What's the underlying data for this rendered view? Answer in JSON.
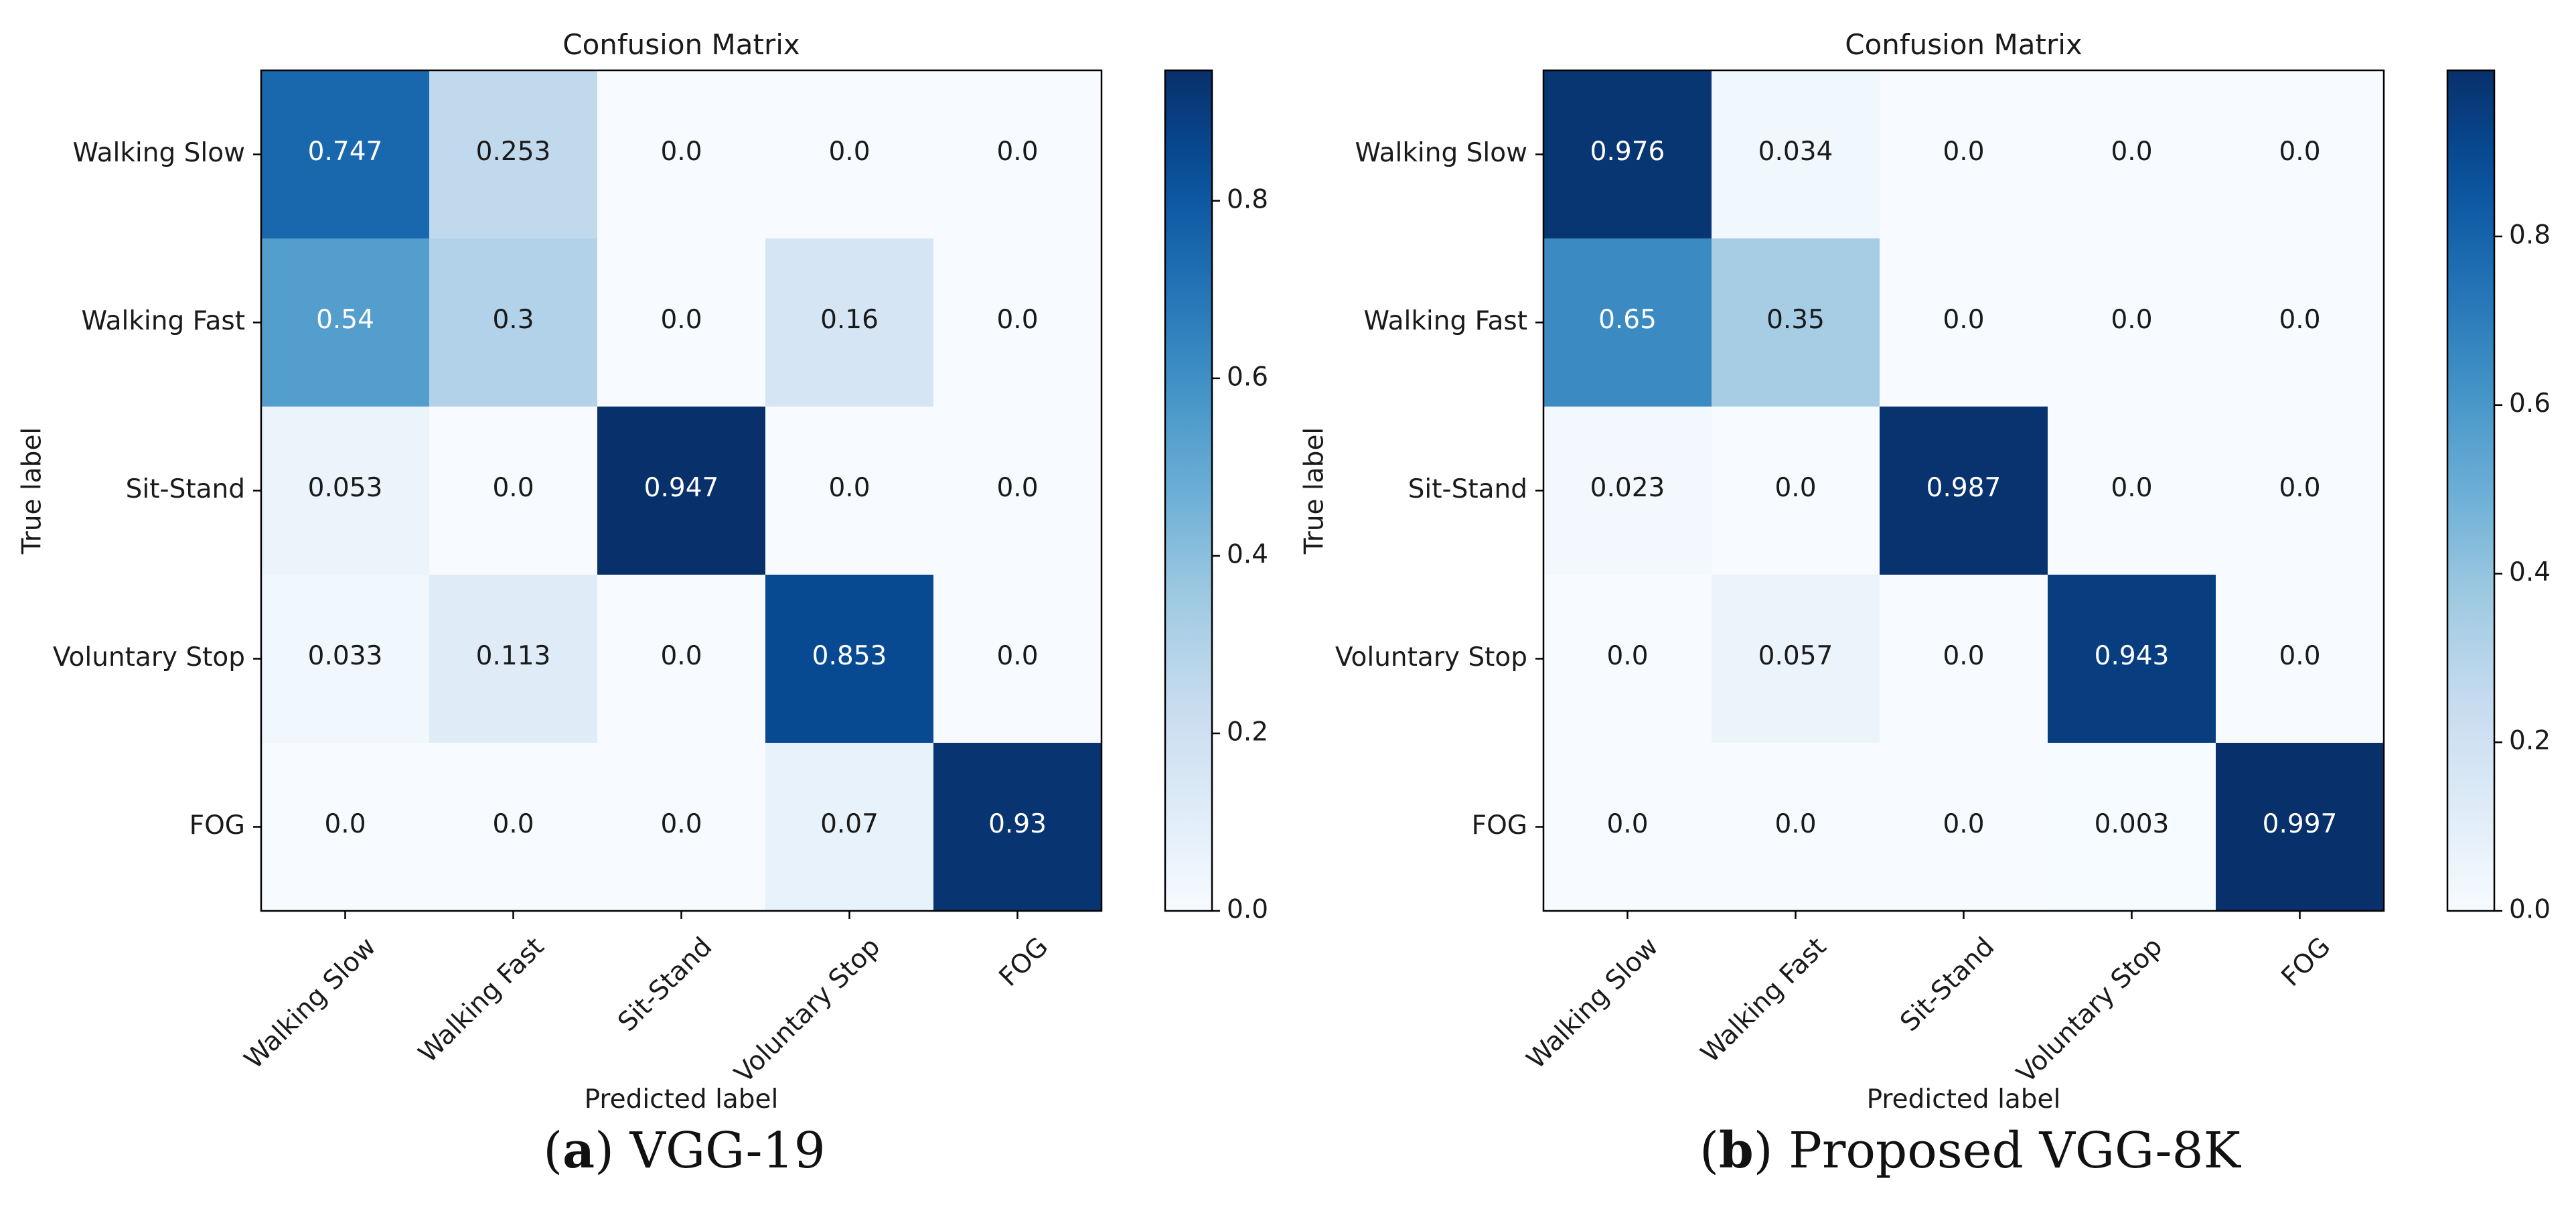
{
  "figure": {
    "panels": [
      {
        "caption_letter": "a",
        "caption_text": " VGG-19"
      },
      {
        "caption_letter": "b",
        "caption_text": " Proposed VGG-8K"
      }
    ]
  },
  "chart_data": [
    {
      "type": "heatmap",
      "title": "Confusion Matrix",
      "xlabel": "Predicted label",
      "ylabel": "True label",
      "x_categories": [
        "Walking Slow",
        "Walking Fast",
        "Sit-Stand",
        "Voluntary Stop",
        "FOG"
      ],
      "y_categories": [
        "Walking Slow",
        "Walking Fast",
        "Sit-Stand",
        "Voluntary Stop",
        "FOG"
      ],
      "values": [
        [
          0.747,
          0.253,
          0.0,
          0.0,
          0.0
        ],
        [
          0.54,
          0.3,
          0.0,
          0.16,
          0.0
        ],
        [
          0.053,
          0.0,
          0.947,
          0.0,
          0.0
        ],
        [
          0.033,
          0.113,
          0.0,
          0.853,
          0.0
        ],
        [
          0.0,
          0.0,
          0.0,
          0.07,
          0.93
        ]
      ],
      "cell_labels": [
        [
          "0.747",
          "0.253",
          "0.0",
          "0.0",
          "0.0"
        ],
        [
          "0.54",
          "0.3",
          "0.0",
          "0.16",
          "0.0"
        ],
        [
          "0.053",
          "0.0",
          "0.947",
          "0.0",
          "0.0"
        ],
        [
          "0.033",
          "0.113",
          "0.0",
          "0.853",
          "0.0"
        ],
        [
          "0.0",
          "0.0",
          "0.0",
          "0.07",
          "0.93"
        ]
      ],
      "colormap": "Blues",
      "colorbar": {
        "min": 0.0,
        "max": 0.947,
        "ticks": [
          0.0,
          0.2,
          0.4,
          0.6,
          0.8
        ],
        "tick_labels": [
          "0.0",
          "0.2",
          "0.4",
          "0.6",
          "0.8"
        ]
      }
    },
    {
      "type": "heatmap",
      "title": "Confusion Matrix",
      "xlabel": "Predicted label",
      "ylabel": "True label",
      "x_categories": [
        "Walking Slow",
        "Walking Fast",
        "Sit-Stand",
        "Voluntary Stop",
        "FOG"
      ],
      "y_categories": [
        "Walking Slow",
        "Walking Fast",
        "Sit-Stand",
        "Voluntary Stop",
        "FOG"
      ],
      "values": [
        [
          0.976,
          0.034,
          0.0,
          0.0,
          0.0
        ],
        [
          0.65,
          0.35,
          0.0,
          0.0,
          0.0
        ],
        [
          0.023,
          0.0,
          0.987,
          0.0,
          0.0
        ],
        [
          0.0,
          0.057,
          0.0,
          0.943,
          0.0
        ],
        [
          0.0,
          0.0,
          0.0,
          0.003,
          0.997
        ]
      ],
      "cell_labels": [
        [
          "0.976",
          "0.034",
          "0.0",
          "0.0",
          "0.0"
        ],
        [
          "0.65",
          "0.35",
          "0.0",
          "0.0",
          "0.0"
        ],
        [
          "0.023",
          "0.0",
          "0.987",
          "0.0",
          "0.0"
        ],
        [
          "0.0",
          "0.057",
          "0.0",
          "0.943",
          "0.0"
        ],
        [
          "0.0",
          "0.0",
          "0.0",
          "0.003",
          "0.997"
        ]
      ],
      "colormap": "Blues",
      "colorbar": {
        "min": 0.0,
        "max": 0.997,
        "ticks": [
          0.0,
          0.2,
          0.4,
          0.6,
          0.8
        ],
        "tick_labels": [
          "0.0",
          "0.2",
          "0.4",
          "0.6",
          "0.8"
        ]
      }
    }
  ]
}
